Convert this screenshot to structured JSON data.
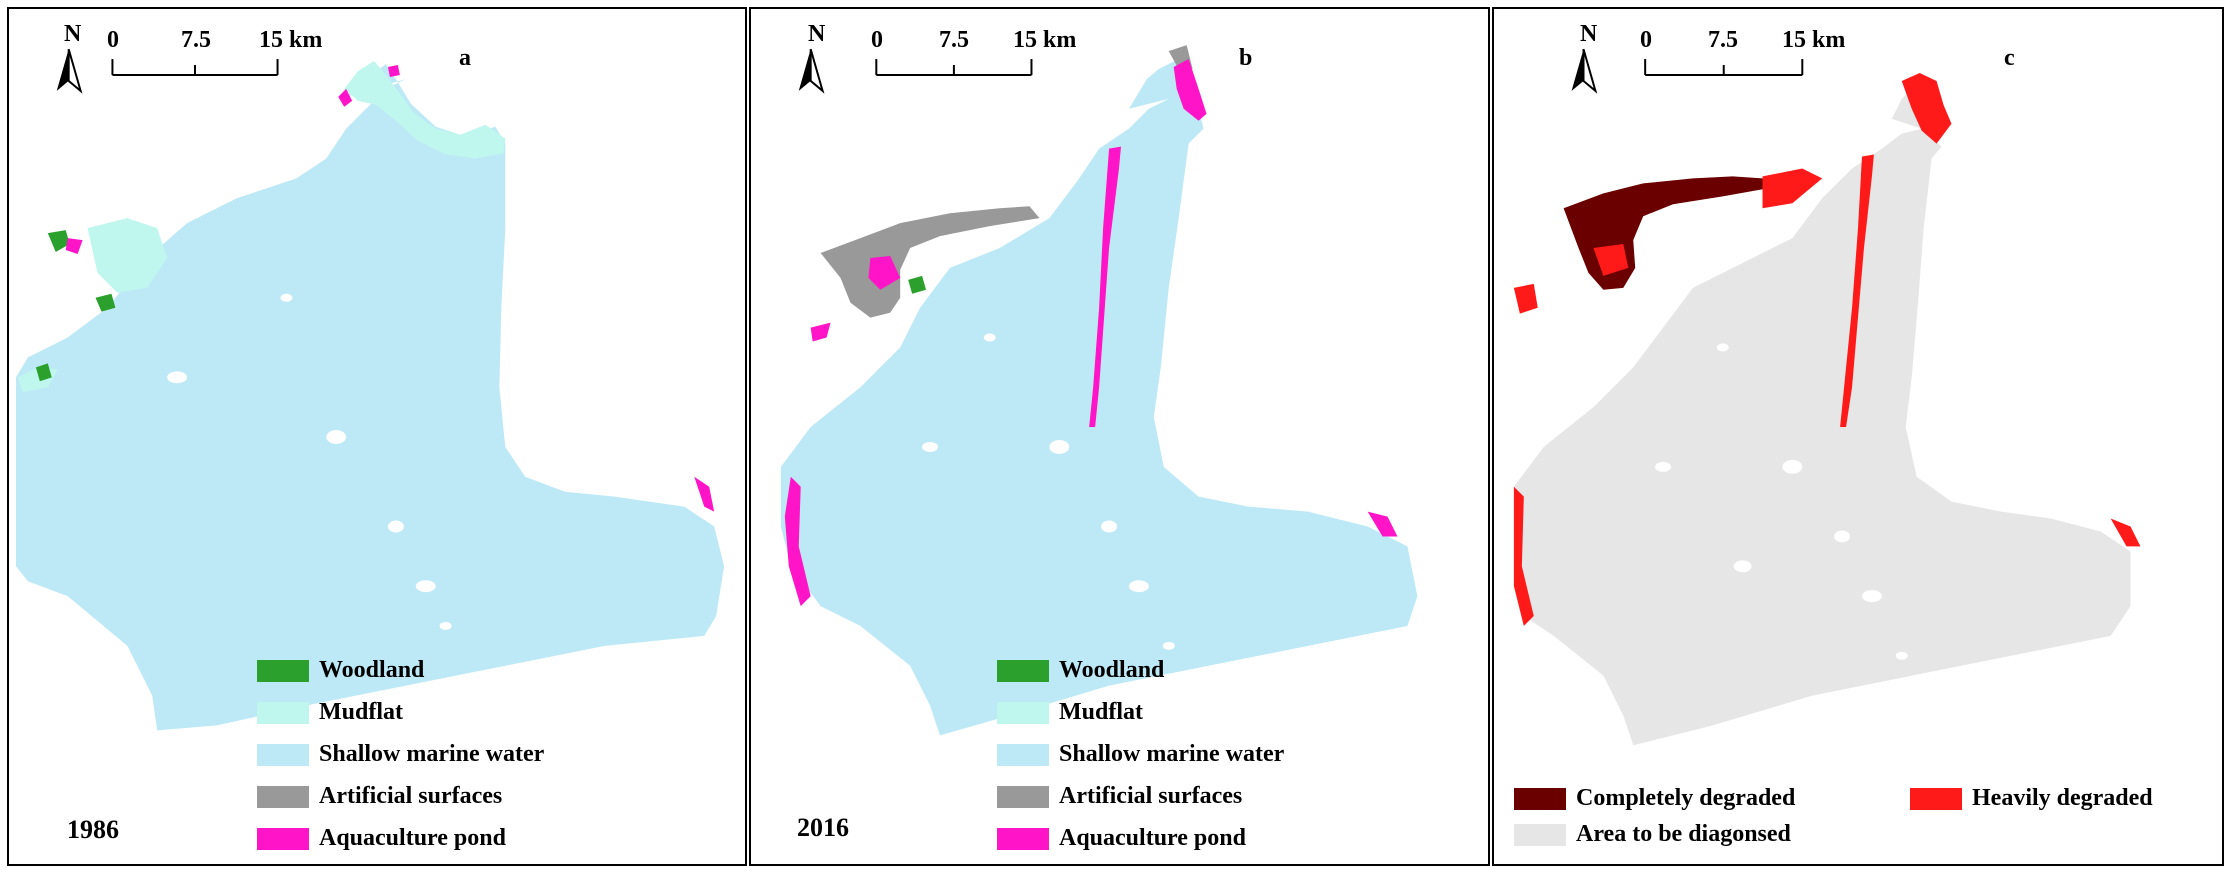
{
  "colors": {
    "woodland": "#2ca02c",
    "mudflat": "#bff7ee",
    "shallow_marine_water": "#bde9f7",
    "artificial_surfaces": "#999999",
    "aquaculture_pond": "#ff14c8",
    "completely_degraded": "#6b0000",
    "heavily_degraded": "#ff1a1a",
    "area_to_be_diagnosed": "#e6e6e6"
  },
  "panels": [
    {
      "letter": "a",
      "year": "1986",
      "north": "N",
      "scale": {
        "ticks": [
          "0",
          "7.5",
          "15 km"
        ]
      },
      "legend": [
        {
          "label": "Woodland",
          "color_key": "woodland"
        },
        {
          "label": "Mudflat",
          "color_key": "mudflat"
        },
        {
          "label": "Shallow marine water",
          "color_key": "shallow_marine_water"
        },
        {
          "label": "Artificial surfaces",
          "color_key": "artificial_surfaces"
        },
        {
          "label": "Aquaculture pond",
          "color_key": "aquaculture_pond"
        }
      ]
    },
    {
      "letter": "b",
      "year": "2016",
      "north": "N",
      "scale": {
        "ticks": [
          "0",
          "7.5",
          "15 km"
        ]
      },
      "legend": [
        {
          "label": "Woodland",
          "color_key": "woodland"
        },
        {
          "label": "Mudflat",
          "color_key": "mudflat"
        },
        {
          "label": "Shallow marine water",
          "color_key": "shallow_marine_water"
        },
        {
          "label": "Artificial surfaces",
          "color_key": "artificial_surfaces"
        },
        {
          "label": "Aquaculture pond",
          "color_key": "aquaculture_pond"
        }
      ]
    },
    {
      "letter": "c",
      "north": "N",
      "scale": {
        "ticks": [
          "0",
          "7.5",
          "15 km"
        ]
      },
      "legend": [
        {
          "label": "Completely degraded",
          "color_key": "completely_degraded"
        },
        {
          "label": "Heavily degraded",
          "color_key": "heavily_degraded"
        },
        {
          "label": "Area to be diagonsed",
          "color_key": "area_to_be_diagnosed"
        }
      ]
    }
  ]
}
